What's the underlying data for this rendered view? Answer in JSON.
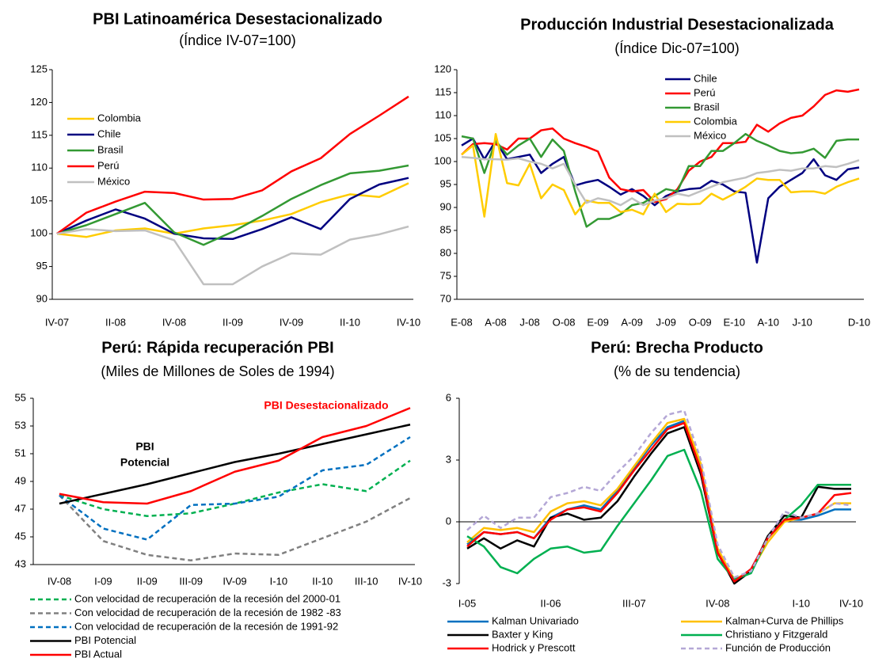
{
  "chart_data": [
    {
      "type": "line",
      "title": "PBI Latinoamérica Desestacionalizado",
      "subtitle": "(Índice IV-07=100)",
      "categories": [
        "IV-07",
        null,
        "II-08",
        null,
        "IV-08",
        null,
        "II-09",
        null,
        "IV-09",
        null,
        "II-10",
        null,
        "IV-10"
      ],
      "ylim": [
        90,
        125
      ],
      "yticks": [
        90,
        95,
        100,
        105,
        110,
        115,
        120,
        125
      ],
      "series": [
        {
          "name": "Colombia",
          "color": "#ffcc00",
          "values": [
            100,
            99.5,
            100.5,
            100.8,
            100,
            100.8,
            101.3,
            102,
            103,
            104.8,
            106,
            105.6,
            107.7
          ]
        },
        {
          "name": "Chile",
          "color": "#000080",
          "values": [
            100,
            102,
            103.7,
            102.3,
            100,
            99.3,
            99.2,
            100.7,
            102.5,
            100.7,
            105.3,
            107.5,
            108.5
          ]
        },
        {
          "name": "Brasil",
          "color": "#339933",
          "values": [
            100,
            101.3,
            103,
            104.7,
            100.2,
            98.3,
            100.3,
            102.7,
            105.3,
            107.4,
            109.2,
            109.6,
            110.4
          ]
        },
        {
          "name": "Perú",
          "color": "#ff0000",
          "values": [
            100,
            103.2,
            104.9,
            106.4,
            106.2,
            105.2,
            105.3,
            106.6,
            109.5,
            111.5,
            115.2,
            118,
            120.9
          ]
        },
        {
          "name": "México",
          "color": "#c0c0c0",
          "values": [
            100,
            100.7,
            100.4,
            100.5,
            99,
            92.3,
            92.3,
            95,
            97,
            96.8,
            99.1,
            99.9,
            101.1
          ]
        }
      ]
    },
    {
      "type": "line",
      "title": "Producción Industrial Desestacionalizada",
      "subtitle": "(Índice Dic-07=100)",
      "categories": [
        "E-08",
        null,
        null,
        "A-08",
        null,
        null,
        "J-08",
        null,
        null,
        "O-08",
        null,
        null,
        "E-09",
        null,
        null,
        "A-09",
        null,
        null,
        "J-09",
        null,
        null,
        "O-09",
        null,
        null,
        "E-10",
        null,
        null,
        "A-10",
        null,
        null,
        "J-10",
        null,
        null,
        null,
        null,
        "D-10"
      ],
      "ylim": [
        70,
        120
      ],
      "yticks": [
        70,
        75,
        80,
        85,
        90,
        95,
        100,
        105,
        110,
        115,
        120
      ],
      "series": [
        {
          "name": "Chile",
          "color": "#000080",
          "values": [
            103.5,
            105,
            100.5,
            104.5,
            100.5,
            101,
            101.5,
            97.5,
            99.5,
            101,
            94.8,
            95.5,
            96,
            94.5,
            92.8,
            94,
            92.5,
            90.5,
            92.5,
            93.5,
            94,
            94.2,
            95.8,
            95,
            93.5,
            93.2,
            78,
            92,
            94.5,
            96,
            97.5,
            100.5,
            97,
            96,
            98.3,
            98.7
          ]
        },
        {
          "name": "Perú",
          "color": "#ff0000",
          "values": [
            101.5,
            103.8,
            104,
            103.8,
            102.6,
            105,
            105,
            106.8,
            107.2,
            105,
            104,
            103.2,
            102.2,
            96.5,
            94,
            93.5,
            93.8,
            91.2,
            91.8,
            94,
            98,
            100,
            101,
            104,
            104,
            104.3,
            108,
            106.5,
            108.3,
            109.5,
            110,
            112,
            114.5,
            115.5,
            115.2,
            115.7
          ]
        },
        {
          "name": "Brasil",
          "color": "#339933",
          "values": [
            105.5,
            105,
            97.5,
            104.5,
            101.5,
            103.5,
            105,
            101,
            104.8,
            102.3,
            93.5,
            85.8,
            87.5,
            87.5,
            88.5,
            90.5,
            91,
            92.5,
            94,
            93.5,
            99,
            99,
            102.3,
            102.3,
            104,
            106,
            104.5,
            103.5,
            102.3,
            101.8,
            102,
            102.8,
            100.8,
            104.5,
            104.8,
            104.8
          ]
        },
        {
          "name": "Colombia",
          "color": "#ffcc00",
          "values": [
            101.5,
            103.5,
            88,
            106,
            95.3,
            94.8,
            99.5,
            92,
            95,
            93.8,
            88.5,
            91.5,
            91,
            91,
            89,
            89.5,
            88.5,
            93,
            89,
            90.8,
            90.7,
            90.8,
            93,
            91.7,
            93,
            94.5,
            96.3,
            96,
            96,
            93.3,
            93.5,
            93.5,
            93,
            94.5,
            95.5,
            96.3
          ]
        },
        {
          "name": "México",
          "color": "#c0c0c0",
          "values": [
            101,
            100.8,
            100.5,
            100.5,
            100.4,
            100.7,
            100,
            99.5,
            98.5,
            99.5,
            95,
            91,
            92,
            91.5,
            90.5,
            92,
            90.5,
            91.5,
            92,
            93,
            92.5,
            93.5,
            94.5,
            95.5,
            96,
            96.5,
            97.5,
            97.8,
            98.2,
            98,
            98.5,
            98.5,
            99,
            98.8,
            99.5,
            100.3
          ]
        }
      ]
    },
    {
      "type": "line",
      "title": "Perú: Rápida recuperación PBI",
      "subtitle": "(Miles de Millones de Soles de 1994)",
      "categories": [
        "IV-08",
        "I-09",
        "II-09",
        "III-09",
        "IV-09",
        "I-10",
        "II-10",
        "III-10",
        "IV-10"
      ],
      "ylim": [
        43,
        55
      ],
      "yticks": [
        43,
        45,
        47,
        49,
        51,
        53,
        55
      ],
      "annotations": [
        {
          "lines": [
            "PBI Desestacionalizado"
          ],
          "color": "#ff0000"
        },
        {
          "lines": [
            "PBI",
            "Potencial"
          ],
          "color": "#000000"
        }
      ],
      "series": [
        {
          "name": "Con velocidad de recuperación de la recesión del 2000-01",
          "color": "#00b050",
          "dashed": true,
          "values": [
            48,
            47,
            46.5,
            46.7,
            47.4,
            48.2,
            48.8,
            48.3,
            50.5
          ]
        },
        {
          "name": "Con velocidad de recuperación de la recesión de 1982 -83",
          "color": "#808080",
          "dashed": true,
          "values": [
            48,
            44.7,
            43.7,
            43.3,
            43.8,
            43.7,
            44.9,
            46.1,
            47.8
          ]
        },
        {
          "name": "Con velocidad de recuperación de la recesión de 1991-92",
          "color": "#0070c0",
          "dashed": true,
          "values": [
            48,
            45.6,
            44.8,
            47.3,
            47.4,
            47.9,
            49.8,
            50.2,
            52.2
          ]
        },
        {
          "name": "PBI Potencial",
          "color": "#000000",
          "dashed": false,
          "values": [
            47.4,
            48.1,
            48.8,
            49.6,
            50.4,
            51,
            51.7,
            52.4,
            53.1
          ]
        },
        {
          "name": "PBI Actual",
          "color": "#ff0000",
          "dashed": false,
          "values": [
            48.1,
            47.5,
            47.4,
            48.3,
            49.7,
            50.5,
            52.2,
            53,
            54.3
          ]
        }
      ]
    },
    {
      "type": "line",
      "title": "Perú: Brecha Producto",
      "subtitle": "(% de su tendencia)",
      "categories": [
        "I-05",
        null,
        null,
        null,
        null,
        "II-06",
        null,
        null,
        null,
        null,
        "III-07",
        null,
        null,
        null,
        null,
        "IV-08",
        null,
        null,
        null,
        null,
        "I-10",
        null,
        null,
        "IV-10"
      ],
      "ylim": [
        -3,
        6
      ],
      "yticks": [
        -3,
        0,
        3,
        6
      ],
      "series": [
        {
          "name": "Kalman Univariado",
          "color": "#0070c0",
          "dashed": false,
          "values": [
            -1.1,
            -0.5,
            -0.6,
            -0.5,
            -0.8,
            0.2,
            0.6,
            0.8,
            0.6,
            1.5,
            2.6,
            3.7,
            4.6,
            4.9,
            2.6,
            -1.5,
            -2.9,
            -2.3,
            -0.8,
            0.1,
            0.1,
            0.3,
            0.6,
            0.6
          ]
        },
        {
          "name": "Kalman+Curva de Phillips",
          "color": "#ffc000",
          "dashed": false,
          "values": [
            -1.0,
            -0.3,
            -0.4,
            -0.3,
            -0.5,
            0.5,
            0.9,
            1.0,
            0.8,
            1.6,
            2.7,
            3.8,
            4.8,
            5.0,
            2.8,
            -1.3,
            -2.8,
            -2.4,
            -1.0,
            0.0,
            0.2,
            0.4,
            0.9,
            0.9
          ]
        },
        {
          "name": "Baxter y King",
          "color": "#000000",
          "dashed": false,
          "values": [
            -1.3,
            -0.8,
            -1.3,
            -0.9,
            -1.2,
            0.2,
            0.4,
            0.1,
            0.2,
            1.0,
            2.2,
            3.3,
            4.3,
            4.6,
            2.3,
            -1.5,
            -3.0,
            -2.4,
            -0.7,
            0.3,
            0.2,
            1.7,
            1.6,
            1.6
          ]
        },
        {
          "name": "Christiano y Fitzgerald",
          "color": "#00b050",
          "dashed": false,
          "values": [
            -0.7,
            -1.2,
            -2.2,
            -2.5,
            -1.8,
            -1.3,
            -1.2,
            -1.5,
            -1.4,
            -0.2,
            0.9,
            2.0,
            3.2,
            3.5,
            1.5,
            -1.8,
            -2.8,
            -2.5,
            -0.8,
            0.1,
            0.8,
            1.8,
            1.8,
            1.8
          ]
        },
        {
          "name": "Hodrick y Prescott",
          "color": "#ff0000",
          "dashed": false,
          "values": [
            -1.2,
            -0.5,
            -0.6,
            -0.5,
            -0.8,
            0.1,
            0.6,
            0.7,
            0.5,
            1.4,
            2.5,
            3.5,
            4.5,
            4.8,
            2.5,
            -1.5,
            -2.9,
            -2.3,
            -0.8,
            0.1,
            0.2,
            0.4,
            1.3,
            1.4
          ]
        },
        {
          "name": "Función de Producción",
          "color": "#b4a7d6",
          "dashed": true,
          "values": [
            -0.4,
            0.3,
            -0.3,
            0.2,
            0.2,
            1.2,
            1.4,
            1.7,
            1.5,
            2.4,
            3.2,
            4.3,
            5.2,
            5.4,
            3.0,
            -1.1,
            -2.7,
            -2.4,
            -0.8,
            0.5,
            0.2,
            0.4,
            0.9,
            0.8
          ]
        }
      ]
    }
  ]
}
